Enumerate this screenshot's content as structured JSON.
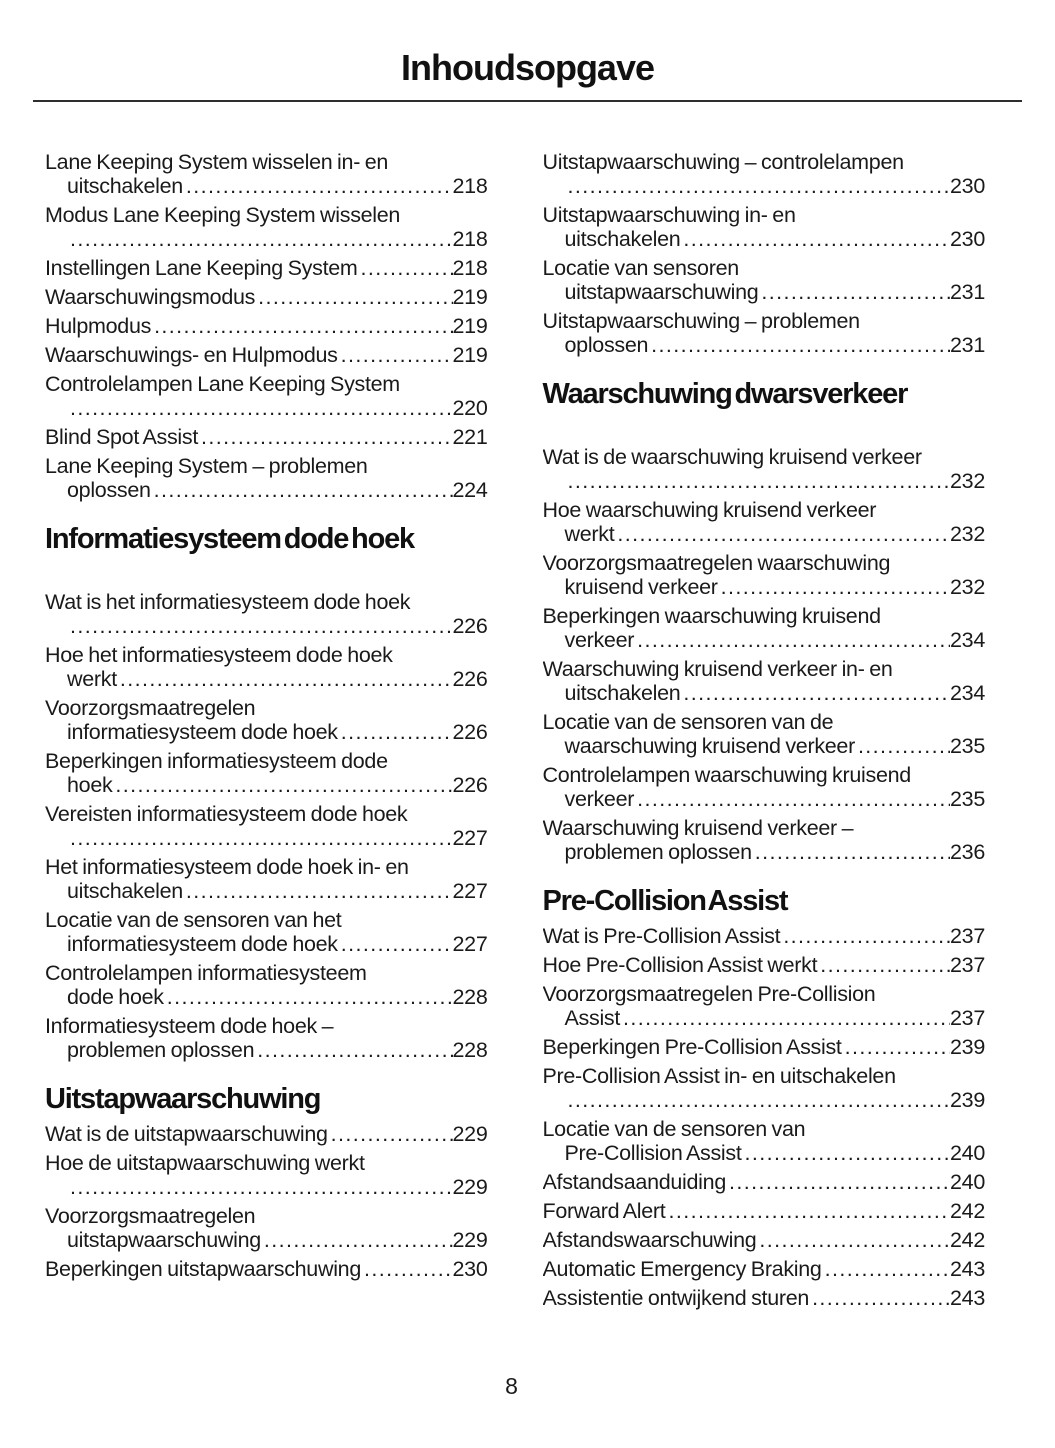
{
  "page": {
    "title": "Inhoudsopgave",
    "page_number": "8"
  },
  "colors": {
    "background": "#ffffff",
    "text": "#1a1a1a",
    "heading": "#111111",
    "rule": "#2e2e2e"
  },
  "toc": {
    "columns": [
      {
        "sections": [
          {
            "heading": "",
            "chapter_gap": false,
            "entries": [
              {
                "lines": [
                  "Lane Keeping System wisselen in- en",
                  "uitschakelen"
                ],
                "page": "218"
              },
              {
                "lines": [
                  "Modus Lane Keeping System wisselen",
                  ""
                ],
                "page": "218"
              },
              {
                "lines": [
                  "Instellingen Lane Keeping System"
                ],
                "page": "218"
              },
              {
                "lines": [
                  "Waarschuwingsmodus"
                ],
                "page": "219"
              },
              {
                "lines": [
                  "Hulpmodus"
                ],
                "page": "219"
              },
              {
                "lines": [
                  "Waarschuwings- en Hulpmodus"
                ],
                "page": "219"
              },
              {
                "lines": [
                  "Controlelampen Lane Keeping System",
                  ""
                ],
                "page": "220"
              },
              {
                "lines": [
                  "Blind Spot Assist"
                ],
                "page": "221"
              },
              {
                "lines": [
                  "Lane Keeping System – problemen",
                  "oplossen"
                ],
                "page": "224"
              }
            ]
          },
          {
            "heading": "Informatiesysteem dode hoek",
            "chapter_gap": true,
            "entries": [
              {
                "lines": [
                  "Wat is het informatiesysteem dode hoek",
                  ""
                ],
                "page": "226"
              },
              {
                "lines": [
                  "Hoe het informatiesysteem dode hoek",
                  "werkt"
                ],
                "page": "226"
              },
              {
                "lines": [
                  "Voorzorgsmaatregelen",
                  "informatiesysteem dode hoek"
                ],
                "page": "226"
              },
              {
                "lines": [
                  "Beperkingen informatiesysteem dode",
                  "hoek"
                ],
                "page": "226"
              },
              {
                "lines": [
                  "Vereisten informatiesysteem dode hoek",
                  ""
                ],
                "page": "227"
              },
              {
                "lines": [
                  "Het informatiesysteem dode hoek in- en",
                  "uitschakelen"
                ],
                "page": "227"
              },
              {
                "lines": [
                  "Locatie van de sensoren van het",
                  "informatiesysteem dode hoek"
                ],
                "page": "227"
              },
              {
                "lines": [
                  "Controlelampen informatiesysteem",
                  "dode hoek"
                ],
                "page": "228"
              },
              {
                "lines": [
                  "Informatiesysteem dode hoek –",
                  "problemen oplossen"
                ],
                "page": "228"
              }
            ]
          },
          {
            "heading": "Uitstapwaarschuwing",
            "chapter_gap": false,
            "entries": [
              {
                "lines": [
                  "Wat is de uitstapwaarschuwing"
                ],
                "page": "229"
              },
              {
                "lines": [
                  "Hoe de uitstapwaarschuwing werkt",
                  ""
                ],
                "page": "229"
              },
              {
                "lines": [
                  "Voorzorgsmaatregelen",
                  "uitstapwaarschuwing"
                ],
                "page": "229"
              },
              {
                "lines": [
                  "Beperkingen uitstapwaarschuwing"
                ],
                "page": "230"
              }
            ]
          }
        ]
      },
      {
        "sections": [
          {
            "heading": "",
            "chapter_gap": false,
            "entries": [
              {
                "lines": [
                  "Uitstapwaarschuwing – controlelampen",
                  ""
                ],
                "page": "230"
              },
              {
                "lines": [
                  "Uitstapwaarschuwing in- en",
                  "uitschakelen"
                ],
                "page": "230"
              },
              {
                "lines": [
                  "Locatie van sensoren",
                  "uitstapwaarschuwing"
                ],
                "page": "231"
              },
              {
                "lines": [
                  "Uitstapwaarschuwing – problemen",
                  "oplossen"
                ],
                "page": "231"
              }
            ]
          },
          {
            "heading": "Waarschuwing dwarsverkeer",
            "chapter_gap": true,
            "entries": [
              {
                "lines": [
                  "Wat is de waarschuwing kruisend verkeer",
                  ""
                ],
                "page": "232"
              },
              {
                "lines": [
                  "Hoe waarschuwing kruisend verkeer",
                  "werkt"
                ],
                "page": "232"
              },
              {
                "lines": [
                  "Voorzorgsmaatregelen waarschuwing",
                  "kruisend verkeer"
                ],
                "page": "232"
              },
              {
                "lines": [
                  "Beperkingen waarschuwing kruisend",
                  "verkeer"
                ],
                "page": "234"
              },
              {
                "lines": [
                  "Waarschuwing kruisend verkeer in- en",
                  "uitschakelen"
                ],
                "page": "234"
              },
              {
                "lines": [
                  "Locatie van de sensoren van de",
                  "waarschuwing kruisend verkeer"
                ],
                "page": "235"
              },
              {
                "lines": [
                  "Controlelampen waarschuwing kruisend",
                  "verkeer"
                ],
                "page": "235"
              },
              {
                "lines": [
                  "Waarschuwing kruisend verkeer –",
                  "problemen oplossen"
                ],
                "page": "236"
              }
            ]
          },
          {
            "heading": "Pre-Collision Assist",
            "chapter_gap": false,
            "entries": [
              {
                "lines": [
                  "Wat is Pre-Collision Assist"
                ],
                "page": "237"
              },
              {
                "lines": [
                  "Hoe Pre-Collision Assist werkt"
                ],
                "page": "237"
              },
              {
                "lines": [
                  "Voorzorgsmaatregelen Pre-Collision",
                  "Assist"
                ],
                "page": "237"
              },
              {
                "lines": [
                  "Beperkingen Pre-Collision Assist"
                ],
                "page": "239"
              },
              {
                "lines": [
                  "Pre-Collision Assist in- en uitschakelen",
                  ""
                ],
                "page": "239"
              },
              {
                "lines": [
                  "Locatie van de sensoren van",
                  "Pre-Collision Assist"
                ],
                "page": "240"
              },
              {
                "lines": [
                  "Afstandsaanduiding"
                ],
                "page": "240"
              },
              {
                "lines": [
                  "Forward Alert"
                ],
                "page": "242"
              },
              {
                "lines": [
                  "Afstandswaarschuwing"
                ],
                "page": "242"
              },
              {
                "lines": [
                  "Automatic Emergency Braking"
                ],
                "page": "243"
              },
              {
                "lines": [
                  "Assistentie ontwijkend sturen"
                ],
                "page": "243"
              }
            ]
          }
        ]
      }
    ]
  }
}
